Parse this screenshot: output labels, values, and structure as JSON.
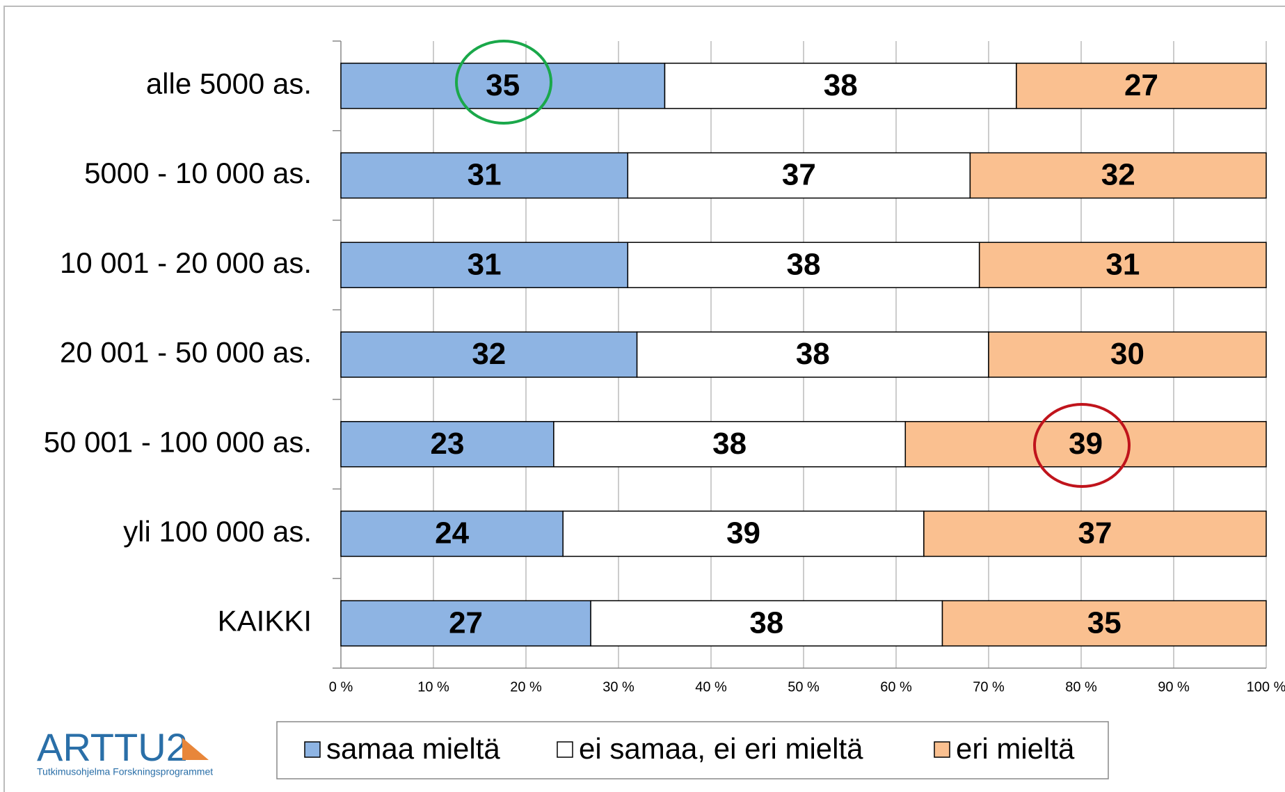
{
  "chart_data": {
    "type": "stacked_bar_horizontal",
    "categories": [
      "alle 5000 as.",
      "5000 - 10 000 as.",
      "10 001 - 20 000 as.",
      "20 001 - 50 000 as.",
      "50 001 - 100 000 as.",
      "yli 100 000 as.",
      "KAIKKI"
    ],
    "series": [
      {
        "name": "samaa mieltä",
        "color": "#8eb4e3",
        "values": [
          35,
          31,
          31,
          32,
          23,
          24,
          27
        ]
      },
      {
        "name": "ei samaa, ei eri mieltä",
        "color": "#ffffff",
        "values": [
          38,
          37,
          38,
          38,
          38,
          39,
          38
        ]
      },
      {
        "name": "eri mieltä",
        "color": "#fac090",
        "values": [
          27,
          32,
          31,
          30,
          39,
          37,
          35
        ]
      }
    ],
    "xlim": [
      0,
      100
    ],
    "xticks": [
      {
        "value": 0,
        "label": "0 %"
      },
      {
        "value": 10,
        "label": "10 %"
      },
      {
        "value": 20,
        "label": "20 %"
      },
      {
        "value": 30,
        "label": "30 %"
      },
      {
        "value": 40,
        "label": "40 %"
      },
      {
        "value": 50,
        "label": "50 %"
      },
      {
        "value": 60,
        "label": "60 %"
      },
      {
        "value": 70,
        "label": "70 %"
      },
      {
        "value": 80,
        "label": "80 %"
      },
      {
        "value": 90,
        "label": "90 %"
      },
      {
        "value": 100,
        "label": "100 %"
      }
    ],
    "grid": true,
    "legend": "bottom"
  },
  "logo": {
    "title": "ARTTU2",
    "subtitle": "Tutkimusohjelma Forskningsprogrammet"
  }
}
